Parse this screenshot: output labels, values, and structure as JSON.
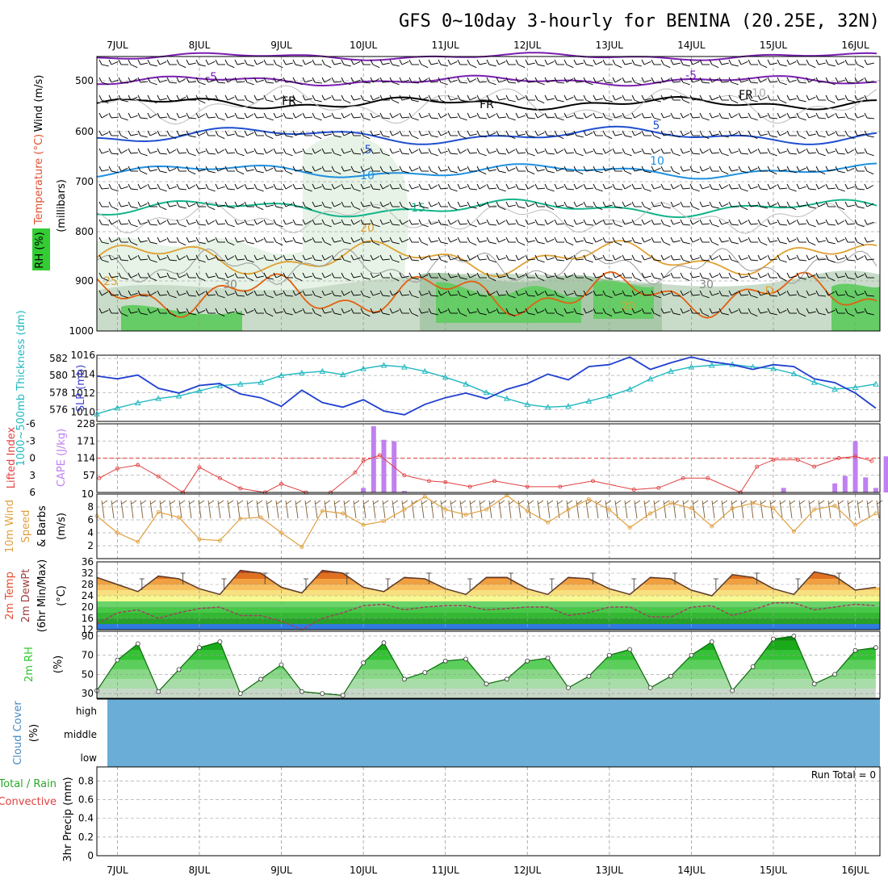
{
  "title": "GFS 0~10day 3-hourly for BENINA (20.25E, 32N)",
  "days": [
    "7JUL",
    "8JUL",
    "9JUL",
    "10JUL",
    "11JUL",
    "12JUL",
    "13JUL",
    "14JUL",
    "15JUL",
    "16JUL"
  ],
  "panels": {
    "upper": {
      "ylabels": [
        "Wind (m/s)",
        "Temperature (°C)",
        "(millibars)",
        "RH (%)"
      ],
      "levels": [
        "500",
        "600",
        "700",
        "800",
        "900",
        "1000"
      ],
      "contour_labels": [
        "-5",
        "FR",
        "5",
        "10",
        "15",
        "20",
        "25",
        "-5",
        "FR",
        "10",
        "FR",
        "5",
        "10",
        "20",
        "D",
        "30",
        "30"
      ]
    },
    "pressure": {
      "ylabel_thk": "1000~500mb Thickness (dm)",
      "ylabel_slp": "SLP (mb)",
      "thk_ticks": [
        "582",
        "580",
        "578",
        "576"
      ],
      "slp_ticks": [
        "1016",
        "1014",
        "1012",
        "1010"
      ]
    },
    "stability": {
      "ylabel_li": "Lifted Index",
      "ylabel_cape": "CAPE (J/kg)",
      "li_ticks": [
        "-6",
        "-3",
        "0",
        "3",
        "6"
      ],
      "cape_ticks": [
        "228",
        "171",
        "114",
        "57"
      ]
    },
    "wind": {
      "ylabel": "10m Wind Speed & Barbs",
      "unit": "(m/s)",
      "ticks": [
        "10",
        "8",
        "6",
        "4",
        "2"
      ]
    },
    "temp": {
      "ylabel": "2m Temp 2m DewPt (6hr Min/Max)",
      "unit": "(°C)",
      "ticks": [
        "36",
        "32",
        "28",
        "24",
        "20",
        "16",
        "12"
      ]
    },
    "rh": {
      "ylabel": "2m RH",
      "unit": "(%)",
      "ticks": [
        "90",
        "70",
        "50",
        "30"
      ]
    },
    "cloud": {
      "ylabel": "Cloud Cover",
      "unit": "(%)",
      "levels": [
        "high",
        "middle",
        "low"
      ]
    },
    "precip": {
      "ylabel_total": "Total / Rain",
      "ylabel_conv": "Convective",
      "ylabel_unit": "3hr Precip (mm)",
      "ticks": [
        "0.8",
        "0.6",
        "0.4",
        "0.2",
        "0"
      ],
      "run_total": "Run Total = 0"
    }
  },
  "colors": {
    "purple": "#7a1fb0",
    "black": "#000000",
    "blue": "#1f4fd0",
    "lightblue": "#1e90e0",
    "teal": "#12b48a",
    "orange": "#e0a030",
    "darkorange": "#e06010",
    "magenta": "#d00090",
    "rh_green": "#2ec82e",
    "slp": "#1f3fd0",
    "thk": "#20b8c0",
    "cape": "#c080f0",
    "li": "#e04040",
    "wind": "#e0a040",
    "cloud": "#6aaed8"
  },
  "chart_data": [
    {
      "type": "line",
      "title": "1000~500mb Thickness (dm)",
      "x": [
        "6JUL18",
        "7JUL00",
        "7JUL06",
        "7JUL12",
        "7JUL18",
        "8JUL00",
        "8JUL06",
        "8JUL12",
        "8JUL18",
        "9JUL00",
        "9JUL06",
        "9JUL12",
        "9JUL18",
        "10JUL00",
        "10JUL06",
        "10JUL12",
        "10JUL18",
        "11JUL00",
        "11JUL06",
        "11JUL12",
        "11JUL18",
        "12JUL00",
        "12JUL06",
        "12JUL12",
        "12JUL18",
        "13JUL00",
        "13JUL06",
        "13JUL12",
        "13JUL18",
        "14JUL00",
        "14JUL06",
        "14JUL12",
        "14JUL18",
        "15JUL00",
        "15JUL06",
        "15JUL12",
        "15JUL18",
        "16JUL00",
        "16JUL06"
      ],
      "series": [
        {
          "name": "1000~500mb Thickness (dm)",
          "values": [
            575.5,
            576.2,
            576.8,
            577.3,
            577.6,
            578.2,
            578.8,
            579.0,
            579.2,
            580.0,
            580.3,
            580.5,
            580.1,
            580.8,
            581.2,
            581.0,
            580.5,
            579.8,
            579.0,
            578.0,
            577.3,
            576.6,
            576.3,
            576.4,
            577.0,
            577.6,
            578.4,
            579.6,
            580.5,
            581.0,
            581.2,
            581.3,
            581.0,
            580.8,
            580.2,
            579.2,
            578.4,
            578.6,
            579.0
          ]
        },
        {
          "name": "SLP (mb)",
          "values": [
            1013.8,
            1013.5,
            1013.9,
            1012.5,
            1012.0,
            1012.8,
            1013.0,
            1011.9,
            1011.5,
            1010.6,
            1012.3,
            1011.0,
            1010.5,
            1011.3,
            1010.1,
            1009.7,
            1010.8,
            1011.5,
            1012.0,
            1011.4,
            1012.4,
            1013.0,
            1014.0,
            1013.4,
            1014.8,
            1015.0,
            1015.8,
            1014.5,
            1015.2,
            1015.8,
            1015.3,
            1015.0,
            1014.5,
            1015.0,
            1014.8,
            1013.5,
            1013.1,
            1012.0,
            1010.4
          ]
        }
      ],
      "ylabel": "SLP (mb)"
    },
    {
      "type": "bar",
      "title": "CAPE (J/kg)",
      "x": [
        "10JUL00",
        "10JUL03",
        "10JUL06",
        "10JUL09",
        "10JUL12",
        "15JUL03",
        "15JUL18",
        "15JUL21",
        "16JUL00",
        "16JUL03",
        "16JUL06",
        "16JUL09",
        "16JUL12"
      ],
      "values": [
        15,
        220,
        175,
        170,
        5,
        15,
        30,
        55,
        170,
        50,
        15,
        120,
        0
      ],
      "ylim": [
        0,
        228
      ]
    },
    {
      "type": "line",
      "title": "10m Wind Speed",
      "x": [
        "6JUL18",
        "7JUL00",
        "7JUL06",
        "7JUL12",
        "7JUL18",
        "8JUL00",
        "8JUL06",
        "8JUL12",
        "8JUL18",
        "9JUL00",
        "9JUL06",
        "9JUL12",
        "9JUL18",
        "10JUL00",
        "10JUL06",
        "10JUL12",
        "10JUL18",
        "11JUL00",
        "11JUL06",
        "11JUL12",
        "11JUL18",
        "12JUL00",
        "12JUL06",
        "12JUL12",
        "12JUL18",
        "13JUL00",
        "13JUL06",
        "13JUL12",
        "13JUL18",
        "14JUL00",
        "14JUL06",
        "14JUL12",
        "14JUL18",
        "15JUL00",
        "15JUL06",
        "15JUL12",
        "15JUL18",
        "16JUL00",
        "16JUL06"
      ],
      "values": [
        6.6,
        4.0,
        2.6,
        7.2,
        6.4,
        3.0,
        2.8,
        6.2,
        6.4,
        4.0,
        1.8,
        7.4,
        7.0,
        5.2,
        5.8,
        7.6,
        9.6,
        7.6,
        6.8,
        7.6,
        9.8,
        7.4,
        5.6,
        7.6,
        9.2,
        7.6,
        4.8,
        7.0,
        8.6,
        7.8,
        5.0,
        7.8,
        8.6,
        7.8,
        4.2,
        7.6,
        8.2,
        5.2,
        7.0
      ],
      "ylim": [
        0,
        10
      ]
    },
    {
      "type": "area",
      "title": "2m Temp",
      "x": [
        "6JUL18",
        "7JUL00",
        "7JUL06",
        "7JUL12",
        "7JUL18",
        "8JUL00",
        "8JUL06",
        "8JUL12",
        "8JUL18",
        "9JUL00",
        "9JUL06",
        "9JUL12",
        "9JUL18",
        "10JUL00",
        "10JUL06",
        "10JUL12",
        "10JUL18",
        "11JUL00",
        "11JUL06",
        "11JUL12",
        "11JUL18",
        "12JUL00",
        "12JUL06",
        "12JUL12",
        "12JUL18",
        "13JUL00",
        "13JUL06",
        "13JUL12",
        "13JUL18",
        "14JUL00",
        "14JUL06",
        "14JUL12",
        "14JUL18",
        "15JUL00",
        "15JUL06",
        "15JUL12",
        "15JUL18",
        "16JUL00",
        "16JUL06"
      ],
      "series": [
        {
          "name": "2m Temp",
          "values": [
            30.5,
            28,
            25.5,
            31,
            30,
            26.5,
            24.5,
            33,
            32,
            27,
            25,
            33,
            32,
            27,
            25.5,
            30.5,
            30,
            26.5,
            24.5,
            30.5,
            30.5,
            26.5,
            24.5,
            30.5,
            30,
            26.5,
            24.5,
            30.5,
            30,
            26,
            24,
            31.5,
            30.5,
            26.5,
            24.5,
            32.5,
            31,
            26,
            27
          ]
        },
        {
          "name": "2m DewPt",
          "values": [
            14,
            18,
            19,
            16,
            18,
            19.5,
            20,
            17,
            17,
            15,
            12,
            16,
            18,
            20.5,
            21,
            19,
            20,
            20.5,
            20.5,
            19,
            19.5,
            20,
            20,
            17,
            18,
            20,
            20,
            16.5,
            16.5,
            20,
            20.5,
            17,
            19,
            21.5,
            21.5,
            19,
            20,
            21,
            20.5
          ]
        }
      ],
      "ylim": [
        12,
        36
      ]
    },
    {
      "type": "area",
      "title": "2m RH",
      "x": [
        "6JUL18",
        "7JUL00",
        "7JUL06",
        "7JUL12",
        "7JUL18",
        "8JUL00",
        "8JUL06",
        "8JUL12",
        "8JUL18",
        "9JUL00",
        "9JUL06",
        "9JUL12",
        "9JUL18",
        "10JUL00",
        "10JUL06",
        "10JUL12",
        "10JUL18",
        "11JUL00",
        "11JUL06",
        "11JUL12",
        "11JUL18",
        "12JUL00",
        "12JUL06",
        "12JUL12",
        "12JUL18",
        "13JUL00",
        "13JUL06",
        "13JUL12",
        "13JUL18",
        "14JUL00",
        "14JUL06",
        "14JUL12",
        "14JUL18",
        "15JUL00",
        "15JUL06",
        "15JUL12",
        "15JUL18",
        "16JUL00",
        "16JUL06"
      ],
      "values": [
        33,
        65,
        82,
        32,
        55,
        78,
        84,
        30,
        45,
        60,
        32,
        30,
        28,
        62,
        83,
        45,
        52,
        64,
        66,
        40,
        45,
        64,
        67,
        36,
        48,
        70,
        76,
        36,
        48,
        70,
        84,
        33,
        58,
        87,
        90,
        40,
        50,
        75,
        78
      ],
      "ylim": [
        25,
        95
      ]
    },
    {
      "type": "bar",
      "title": "3hr Precip (mm)",
      "x": [],
      "values": [],
      "ylim": [
        0,
        1
      ]
    }
  ]
}
